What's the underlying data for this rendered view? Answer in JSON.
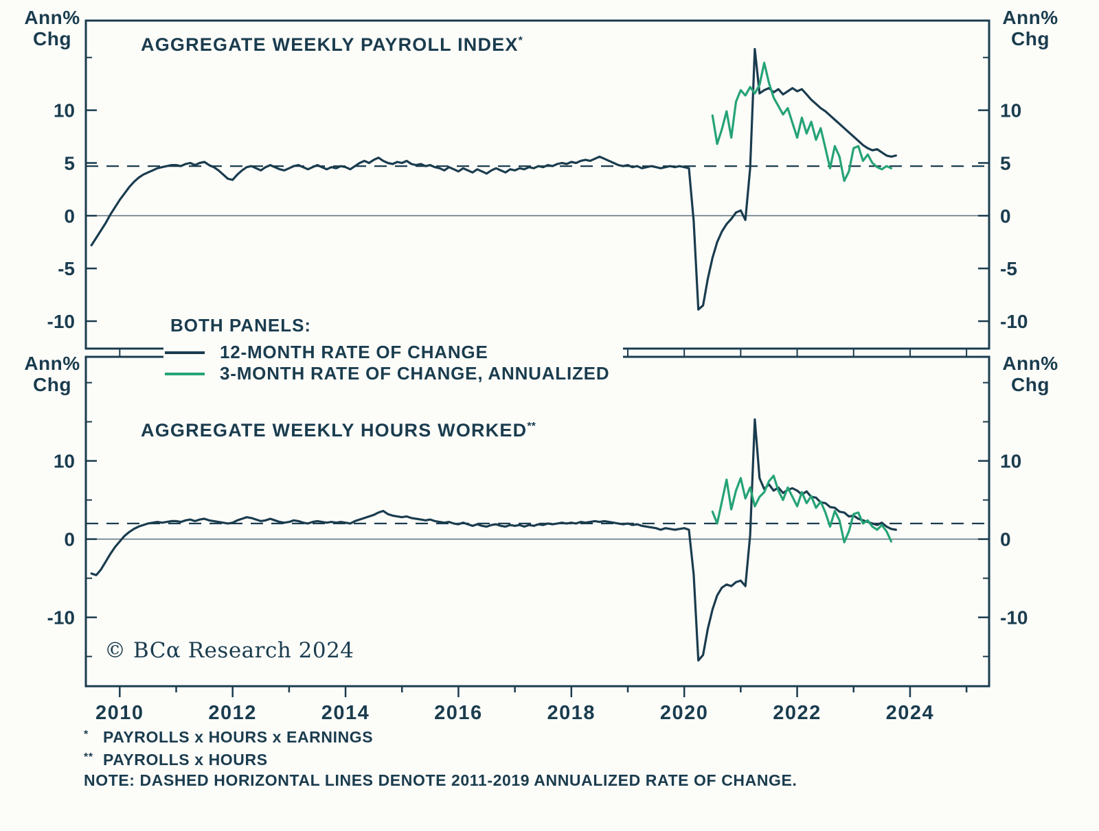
{
  "page": {
    "background": "#fcfcf9"
  },
  "colors": {
    "dark": "#1a3c4e",
    "green": "#25a376",
    "zero_line": "#5a6f7a"
  },
  "labels": {
    "ann_pct": "Ann%",
    "chg": "Chg"
  },
  "legend": {
    "title": "BOTH PANELS:",
    "items": [
      {
        "label": "12-MONTH RATE OF CHANGE",
        "color_key": "dark"
      },
      {
        "label": "3-MONTH RATE OF CHANGE, ANNUALIZED",
        "color_key": "green"
      }
    ]
  },
  "copyright": "© BCα Research 2024",
  "footnotes": [
    {
      "marker": "*",
      "text": "PAYROLLS x HOURS x EARNINGS"
    },
    {
      "marker": "**",
      "text": "PAYROLLS x HOURS"
    },
    {
      "marker": "",
      "text": "NOTE: DASHED HORIZONTAL LINES DENOTE 2011-2019 ANNUALIZED RATE OF CHANGE."
    }
  ],
  "chart_data": {
    "type": "line",
    "x_axis": {
      "min": 2009.4,
      "max": 2025.4,
      "tick_years": [
        2010,
        2011,
        2012,
        2013,
        2014,
        2015,
        2016,
        2017,
        2018,
        2019,
        2020,
        2021,
        2022,
        2023,
        2024,
        2025
      ],
      "label_years": [
        2010,
        2012,
        2014,
        2016,
        2018,
        2020,
        2022,
        2024
      ]
    },
    "panels": [
      {
        "title": "AGGREGATE WEEKLY PAYROLL INDEX",
        "title_marker": "*",
        "ylabel": "Ann% Chg",
        "ylim": [
          -12.6,
          18.5
        ],
        "yticks_labeled": [
          10,
          5,
          0,
          -5,
          -10
        ],
        "yticks_minor": [
          15
        ],
        "dashed_line_y": 4.7,
        "dashed_note": "2011-2019 annualized rate of change",
        "series": [
          {
            "name": "12-MONTH RATE OF CHANGE",
            "color": "dark",
            "start": 2009.5,
            "step_months": 1,
            "values": [
              -2.8,
              -2.1,
              -1.4,
              -0.7,
              0.1,
              0.8,
              1.5,
              2.1,
              2.7,
              3.2,
              3.6,
              3.9,
              4.1,
              4.3,
              4.5,
              4.6,
              4.7,
              4.8,
              4.8,
              4.7,
              4.9,
              5.0,
              4.8,
              5.0,
              5.1,
              4.8,
              4.6,
              4.3,
              3.9,
              3.5,
              3.4,
              3.9,
              4.3,
              4.6,
              4.7,
              4.5,
              4.3,
              4.6,
              4.8,
              4.6,
              4.4,
              4.3,
              4.5,
              4.7,
              4.8,
              4.6,
              4.4,
              4.6,
              4.8,
              4.6,
              4.4,
              4.6,
              4.5,
              4.7,
              4.6,
              4.4,
              4.7,
              5.0,
              5.2,
              5.0,
              5.3,
              5.5,
              5.2,
              5.0,
              4.9,
              5.1,
              5.0,
              5.2,
              4.9,
              4.8,
              4.9,
              4.7,
              4.8,
              4.6,
              4.5,
              4.3,
              4.6,
              4.4,
              4.2,
              4.5,
              4.3,
              4.1,
              4.4,
              4.2,
              4.0,
              4.3,
              4.5,
              4.3,
              4.1,
              4.4,
              4.3,
              4.5,
              4.4,
              4.6,
              4.5,
              4.7,
              4.6,
              4.8,
              4.7,
              4.9,
              5.0,
              4.9,
              5.1,
              5.0,
              5.2,
              5.3,
              5.2,
              5.4,
              5.6,
              5.4,
              5.2,
              5.0,
              4.8,
              4.7,
              4.8,
              4.6,
              4.7,
              4.5,
              4.6,
              4.7,
              4.6,
              4.5,
              4.6,
              4.7,
              4.6,
              4.7,
              4.6,
              4.5,
              -0.5,
              -8.9,
              -8.5,
              -6.0,
              -4.0,
              -2.5,
              -1.5,
              -0.8,
              -0.3,
              0.3,
              0.5,
              -0.4,
              4.5,
              15.8,
              11.6,
              11.9,
              12.1,
              11.7,
              12.0,
              11.5,
              11.8,
              12.1,
              11.8,
              12.0,
              11.5,
              11.0,
              10.6,
              10.2,
              9.9,
              9.5,
              9.1,
              8.7,
              8.3,
              7.9,
              7.5,
              7.1,
              6.7,
              6.4,
              6.2,
              6.3,
              6.0,
              5.7,
              5.6,
              5.7
            ]
          },
          {
            "name": "3-MONTH RATE OF CHANGE, ANNUALIZED",
            "color": "green",
            "start": 2020.5,
            "step_months": 1,
            "values": [
              9.5,
              6.8,
              8.2,
              9.9,
              7.4,
              10.8,
              11.9,
              11.4,
              12.2,
              11.6,
              12.4,
              14.5,
              12.6,
              11.2,
              10.4,
              9.6,
              10.2,
              8.8,
              7.4,
              9.3,
              7.8,
              8.9,
              7.2,
              8.3,
              6.4,
              4.5,
              6.6,
              5.6,
              3.3,
              4.2,
              6.4,
              6.6,
              5.2,
              5.8,
              5.0,
              4.6,
              4.4,
              4.7,
              4.5
            ]
          }
        ]
      },
      {
        "title": "AGGREGATE WEEKLY HOURS WORKED",
        "title_marker": "**",
        "ylabel": "Ann% Chg",
        "ylim": [
          -18.8,
          23.3
        ],
        "yticks_labeled": [
          10,
          0,
          -10
        ],
        "yticks_minor": [
          20,
          15,
          5,
          -5,
          -15
        ],
        "dashed_line_y": 2.0,
        "dashed_note": "2011-2019 annualized rate of change",
        "series": [
          {
            "name": "12-MONTH RATE OF CHANGE",
            "color": "dark",
            "start": 2009.5,
            "step_months": 1,
            "values": [
              -4.4,
              -4.6,
              -3.9,
              -2.9,
              -1.9,
              -1.0,
              -0.3,
              0.4,
              0.9,
              1.3,
              1.6,
              1.8,
              2.0,
              2.1,
              2.2,
              2.1,
              2.2,
              2.3,
              2.3,
              2.2,
              2.4,
              2.5,
              2.3,
              2.5,
              2.6,
              2.4,
              2.3,
              2.2,
              2.1,
              2.0,
              2.1,
              2.4,
              2.6,
              2.8,
              2.7,
              2.5,
              2.3,
              2.4,
              2.6,
              2.4,
              2.2,
              2.1,
              2.2,
              2.4,
              2.3,
              2.1,
              2.0,
              2.2,
              2.3,
              2.2,
              2.1,
              2.2,
              2.1,
              2.2,
              2.1,
              2.0,
              2.3,
              2.5,
              2.7,
              2.9,
              3.1,
              3.4,
              3.6,
              3.2,
              3.0,
              2.9,
              2.8,
              2.9,
              2.7,
              2.6,
              2.5,
              2.4,
              2.5,
              2.3,
              2.2,
              2.1,
              2.2,
              2.0,
              1.9,
              2.1,
              1.9,
              1.7,
              1.9,
              1.7,
              1.6,
              1.8,
              1.9,
              1.7,
              1.6,
              1.8,
              1.7,
              1.8,
              1.6,
              1.8,
              1.7,
              1.9,
              1.8,
              2.0,
              1.9,
              2.0,
              2.1,
              2.0,
              2.1,
              2.0,
              2.2,
              2.1,
              2.2,
              2.3,
              2.2,
              2.3,
              2.2,
              2.1,
              2.0,
              1.9,
              2.0,
              1.8,
              1.9,
              1.7,
              1.6,
              1.5,
              1.4,
              1.2,
              1.4,
              1.3,
              1.2,
              1.3,
              1.4,
              1.2,
              -4.5,
              -15.5,
              -14.8,
              -11.5,
              -9.0,
              -7.2,
              -6.2,
              -5.8,
              -6.0,
              -5.5,
              -5.3,
              -6.0,
              0.5,
              15.3,
              7.8,
              6.4,
              7.0,
              6.2,
              6.6,
              5.9,
              6.3,
              6.5,
              6.2,
              5.7,
              6.1,
              5.4,
              5.3,
              4.7,
              4.6,
              4.1,
              4.0,
              3.5,
              3.4,
              2.9,
              3.0,
              2.6,
              2.4,
              2.2,
              2.0,
              1.8,
              2.1,
              1.6,
              1.3,
              1.2
            ]
          },
          {
            "name": "3-MONTH RATE OF CHANGE, ANNUALIZED",
            "color": "green",
            "start": 2020.5,
            "step_months": 1,
            "values": [
              3.5,
              2.0,
              4.8,
              7.6,
              3.8,
              6.2,
              7.8,
              5.2,
              6.6,
              4.2,
              5.4,
              6.0,
              7.4,
              8.1,
              6.2,
              5.0,
              6.6,
              5.4,
              4.2,
              6.0,
              4.6,
              5.5,
              4.0,
              4.8,
              3.4,
              1.6,
              3.6,
              2.4,
              -0.4,
              1.0,
              3.2,
              3.4,
              2.0,
              2.4,
              1.6,
              1.2,
              1.8,
              1.0,
              -0.3
            ]
          }
        ]
      }
    ]
  }
}
